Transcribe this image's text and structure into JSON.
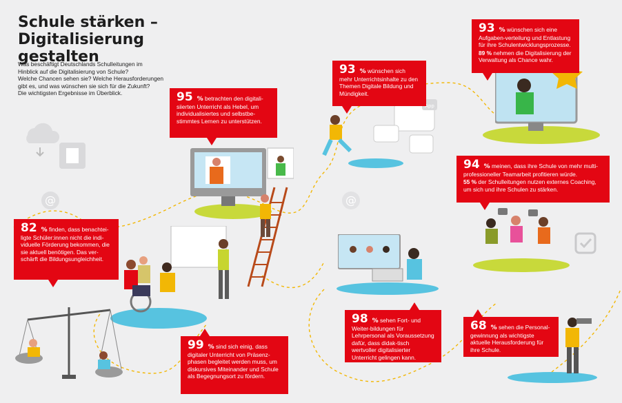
{
  "title": {
    "line1": "Schule stärken –",
    "line2": "Digitalisierung gestalten"
  },
  "intro": {
    "line1": "Was beschäftigt Deutschlands Schulleitungen im",
    "line2": "Hinblick auf die Digitalisierung von Schule?",
    "line3": "Welche Chancen sehen sie? Welche Herausforderungen",
    "line4": "gibt es, und was wünschen sie sich für die Zukunft?",
    "line5": "Die wichtigsten Ergebnisse im Überblick."
  },
  "facts": {
    "f95": {
      "num": "95",
      "pct": "%",
      "text": "betrachten den digitali-siierten Unterricht als Hebel, um individualisiertes und selbstbe-stimmtes Lernen zu unterstützen."
    },
    "f82": {
      "num": "82",
      "pct": "%",
      "text": "finden, dass benachtei-ligte Schüler:innen nicht die indi-viduelle Förderung bekommen, die sie aktuell benötigen. Das ver-schärft die Bildungsungleichheit."
    },
    "f99": {
      "num": "99",
      "pct": "%",
      "text": "sind sich einig, dass digitaler Unterricht von Präsenz-phasen begleitet werden muss, um diskursives Miteinander und Schule als Begegnungsort zu fördern."
    },
    "f93a": {
      "num": "93",
      "pct": "%",
      "text": "wünschen sich mehr Unterrichtsinhalte zu den Themen Digitale Bildung und Mündigkeit."
    },
    "f93b": {
      "num": "93",
      "pct": "%",
      "text": "wünschen sich eine Aufgaben-verteilung und Entlastung für ihre Schulentwicklungsprozesse.",
      "num2": "89 %",
      "text2": "nehmen die Digitalisierung der Verwaltung als Chance wahr."
    },
    "f94": {
      "num": "94",
      "pct": "%",
      "text": "meinen, dass ihre Schule von mehr multi-professioneller Teamarbeit profitieren würde.",
      "num2": "55 %",
      "text2": "der Schulleitungen nutzen externes Coaching, um sich und ihre Schulen zu stärken."
    },
    "f98": {
      "num": "98",
      "pct": "%",
      "text": "sehen Fort- und Weiter-bildungen für Lehrpersonal als Voraussetzung dafür, dass didak-tisch wertvoller digitalisierter Unterricht gelingen kann."
    },
    "f68": {
      "num": "68",
      "pct": "%",
      "text": "sehen die Personal-gewinnung als wichtigste aktuelle Herausforderung für ihre Schule."
    }
  },
  "icons": {
    "app_label": "App"
  },
  "colors": {
    "accent": "#e30613",
    "green": "#c8d93b",
    "blue": "#57c3e0",
    "bg": "#efeff0"
  }
}
